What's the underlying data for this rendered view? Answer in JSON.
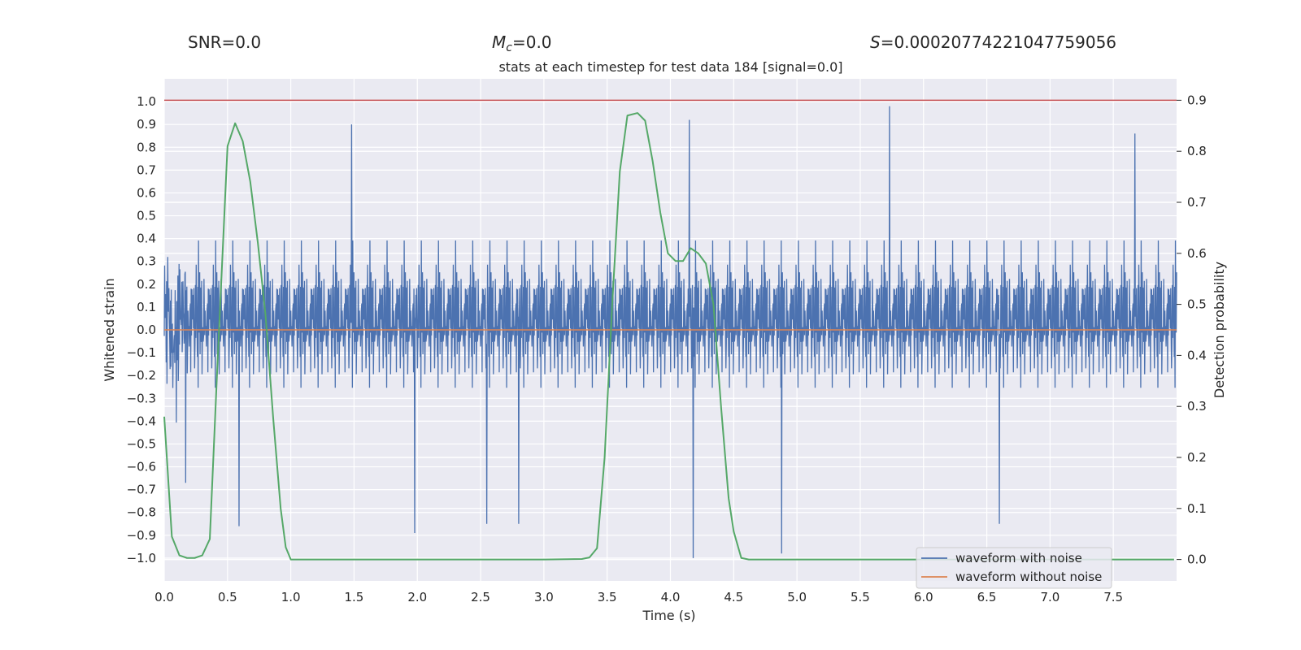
{
  "header": {
    "snr_label": "SNR=0.0",
    "mc_symbol": "M",
    "mc_subscript": "c",
    "mc_value": "=0.0",
    "s_symbol": "S",
    "s_value": "=0.00020774221047759056"
  },
  "chart_data": {
    "type": "line",
    "title": "stats at each timestep for test data 184 [signal=0.0]",
    "xlabel": "Time (s)",
    "ylabel": "Whitened strain",
    "y2label": "Detection probability",
    "xlim": [
      0.0,
      8.0
    ],
    "ylim": [
      -1.1,
      1.1
    ],
    "y2lim": [
      -0.042,
      0.942
    ],
    "xticks": [
      0.0,
      0.5,
      1.0,
      1.5,
      2.0,
      2.5,
      3.0,
      3.5,
      4.0,
      4.5,
      5.0,
      5.5,
      6.0,
      6.5,
      7.0,
      7.5
    ],
    "xtick_labels": [
      "0.0",
      "0.5",
      "1.0",
      "1.5",
      "2.0",
      "2.5",
      "3.0",
      "3.5",
      "4.0",
      "4.5",
      "5.0",
      "5.5",
      "6.0",
      "6.5",
      "7.0",
      "7.5"
    ],
    "yticks": [
      1.0,
      0.9,
      0.8,
      0.7,
      0.6,
      0.5,
      0.4,
      0.3,
      0.2,
      0.1,
      0.0,
      -0.1,
      -0.2,
      -0.3,
      -0.4,
      -0.5,
      -0.6,
      -0.7,
      -0.8,
      -0.9,
      -1.0
    ],
    "ytick_labels": [
      "1.0",
      "0.9",
      "0.8",
      "0.7",
      "0.6",
      "0.5",
      "0.4",
      "0.3",
      "0.2",
      "0.1",
      "0.0",
      "−0.1",
      "−0.2",
      "−0.3",
      "−0.4",
      "−0.5",
      "−0.6",
      "−0.7",
      "−0.8",
      "−0.9",
      "−1.0"
    ],
    "y2ticks": [
      0.9,
      0.8,
      0.7,
      0.6,
      0.5,
      0.4,
      0.3,
      0.2,
      0.1,
      0.0
    ],
    "y2tick_labels": [
      "0.9",
      "0.8",
      "0.7",
      "0.6",
      "0.5",
      "0.4",
      "0.3",
      "0.2",
      "0.1",
      "0.0"
    ],
    "threshold": {
      "value": 0.9,
      "axis": "y2",
      "color": "#c44e52"
    },
    "series": [
      {
        "name": "waveform with noise",
        "color": "#4c72b0",
        "axis": "y",
        "style": "dense whitened noise, typical envelope about ±0.45, peaks up to about ±1.0",
        "notable_peaks": [
          [
            0.17,
            -0.67
          ],
          [
            0.59,
            -0.86
          ],
          [
            1.48,
            0.9
          ],
          [
            1.98,
            -0.89
          ],
          [
            2.55,
            -0.85
          ],
          [
            2.8,
            -0.85
          ],
          [
            4.15,
            0.92
          ],
          [
            4.18,
            -1.0
          ],
          [
            4.88,
            -0.98
          ],
          [
            5.73,
            0.98
          ],
          [
            6.6,
            -0.85
          ],
          [
            7.67,
            0.86
          ]
        ]
      },
      {
        "name": "waveform without noise",
        "color": "#dd8452",
        "axis": "y",
        "x": [
          0.0,
          8.0
        ],
        "values": [
          0.0,
          0.0
        ]
      },
      {
        "name": "detection probability",
        "color": "#55a868",
        "axis": "y2",
        "x": [
          0.0,
          0.06,
          0.12,
          0.18,
          0.24,
          0.3,
          0.36,
          0.42,
          0.5,
          0.56,
          0.62,
          0.68,
          0.74,
          0.8,
          0.86,
          0.92,
          0.96,
          1.0,
          1.5,
          2.0,
          2.5,
          3.0,
          3.3,
          3.36,
          3.42,
          3.48,
          3.54,
          3.6,
          3.66,
          3.74,
          3.8,
          3.86,
          3.92,
          3.98,
          4.04,
          4.1,
          4.16,
          4.22,
          4.28,
          4.34,
          4.4,
          4.46,
          4.5,
          4.56,
          4.62,
          5.0,
          6.0,
          7.0,
          7.98
        ],
        "values": [
          0.28,
          0.045,
          0.008,
          0.003,
          0.003,
          0.008,
          0.04,
          0.38,
          0.81,
          0.855,
          0.82,
          0.74,
          0.62,
          0.48,
          0.28,
          0.1,
          0.024,
          0.0,
          0.0,
          0.0,
          0.0,
          0.0,
          0.001,
          0.004,
          0.022,
          0.2,
          0.5,
          0.76,
          0.87,
          0.875,
          0.86,
          0.78,
          0.68,
          0.6,
          0.585,
          0.585,
          0.61,
          0.6,
          0.58,
          0.5,
          0.3,
          0.12,
          0.055,
          0.003,
          0.0,
          0.0,
          0.0,
          0.0,
          0.0
        ]
      }
    ],
    "legend": {
      "position": "bottom-right",
      "entries": [
        "waveform with noise",
        "waveform without noise"
      ]
    }
  }
}
